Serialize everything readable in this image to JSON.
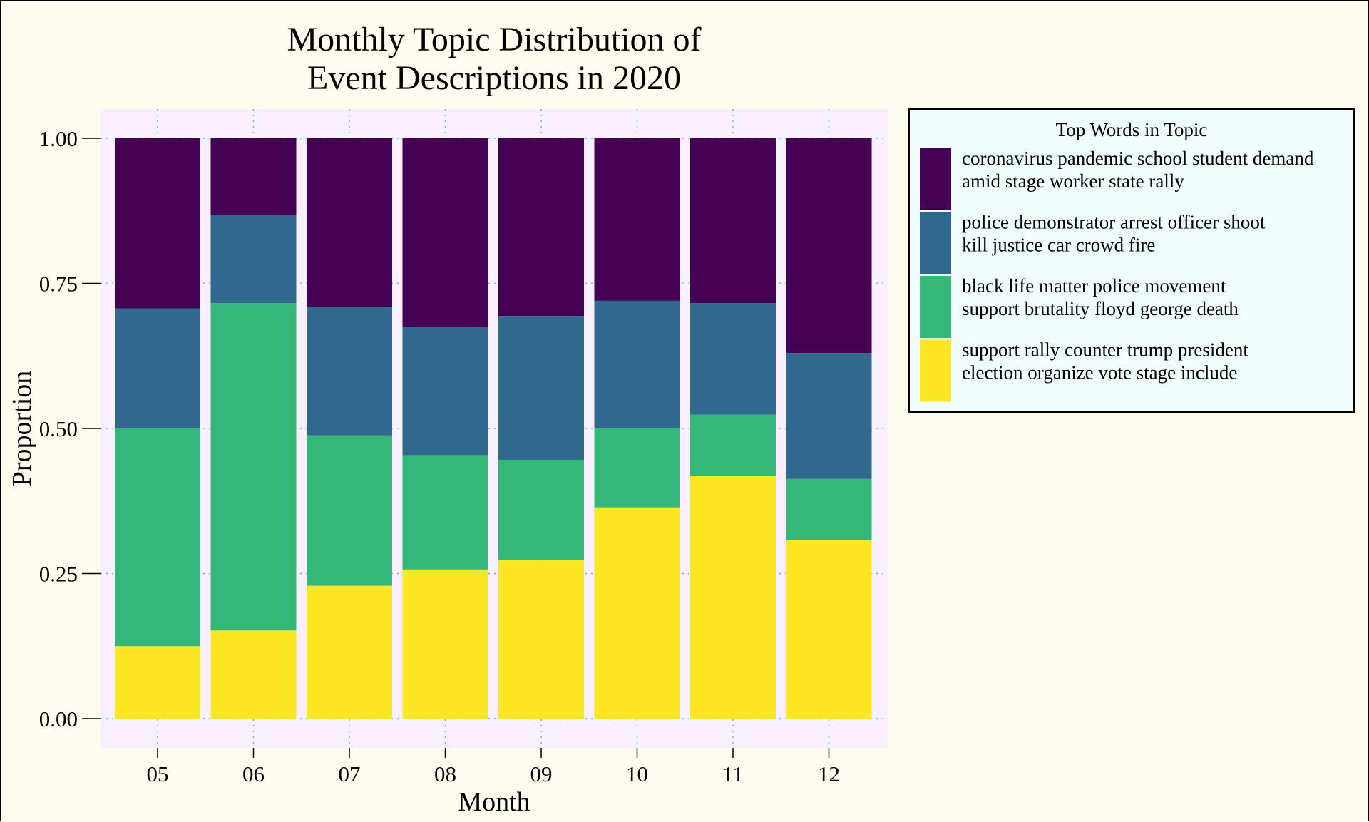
{
  "chart_data": {
    "type": "bar",
    "stacked": true,
    "title_lines": [
      "Monthly Topic Distribution of",
      "Event Descriptions in 2020"
    ],
    "xlabel": "Month",
    "ylabel": "Proportion",
    "ylim": [
      0,
      1
    ],
    "yticks": [
      "0.00",
      "0.25",
      "0.50",
      "0.75",
      "1.00"
    ],
    "categories": [
      "05",
      "06",
      "07",
      "08",
      "09",
      "10",
      "11",
      "12"
    ],
    "series": [
      {
        "color": "#fde725",
        "legend_lines": [
          "support rally counter trump president",
          "election organize vote stage include"
        ],
        "values": [
          0.125,
          0.152,
          0.229,
          0.257,
          0.273,
          0.364,
          0.418,
          0.308
        ]
      },
      {
        "color": "#35b779",
        "legend_lines": [
          "black life matter police movement",
          "support brutality floyd george death"
        ],
        "values": [
          0.376,
          0.564,
          0.259,
          0.197,
          0.173,
          0.137,
          0.106,
          0.105
        ]
      },
      {
        "color": "#31688e",
        "legend_lines": [
          "police demonstrator arrest officer shoot",
          "kill justice car crowd fire"
        ],
        "values": [
          0.206,
          0.152,
          0.222,
          0.221,
          0.248,
          0.219,
          0.192,
          0.217
        ]
      },
      {
        "color": "#440154",
        "legend_lines": [
          "coronavirus pandemic school student demand",
          "amid stage worker state rally"
        ],
        "values": [
          0.293,
          0.132,
          0.29,
          0.325,
          0.306,
          0.28,
          0.284,
          0.37
        ]
      }
    ],
    "legend": {
      "title": "Top Words in Topic",
      "placement": "right",
      "order": [
        3,
        2,
        1,
        0
      ]
    },
    "grid": "dotted",
    "colors": {
      "page_background": "#fffcf0",
      "panel_background": "#f9f0ff",
      "legend_background": "#f0fffc",
      "grid": "#5fb9d0"
    }
  }
}
